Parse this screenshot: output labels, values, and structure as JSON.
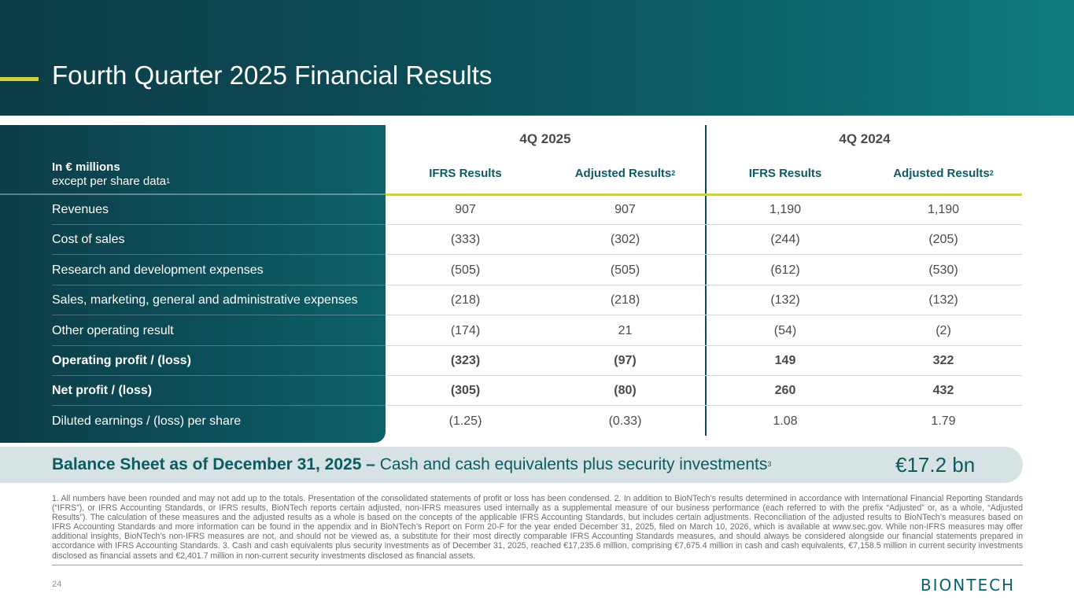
{
  "header": {
    "title": "Fourth Quarter 2025 Financial Results"
  },
  "table": {
    "units_line1": "In € millions",
    "units_line2": "except per share data",
    "units_sup": "1",
    "groups": [
      "4Q 2025",
      "4Q 2024"
    ],
    "columns": [
      {
        "label": "IFRS Results",
        "sup": ""
      },
      {
        "label": "Adjusted Results",
        "sup": "2"
      },
      {
        "label": "IFRS Results",
        "sup": ""
      },
      {
        "label": "Adjusted Results",
        "sup": "2"
      }
    ],
    "rows": [
      {
        "label": "Revenues",
        "values": [
          "907",
          "907",
          "1,190",
          "1,190"
        ],
        "bold": false
      },
      {
        "label": "Cost of sales",
        "values": [
          "(333)",
          "(302)",
          "(244)",
          "(205)"
        ],
        "bold": false
      },
      {
        "label": "Research and development expenses",
        "values": [
          "(505)",
          "(505)",
          "(612)",
          "(530)"
        ],
        "bold": false
      },
      {
        "label": "Sales, marketing, general and administrative expenses",
        "values": [
          "(218)",
          "(218)",
          "(132)",
          "(132)"
        ],
        "bold": false
      },
      {
        "label": "Other operating result",
        "values": [
          "(174)",
          "21",
          "(54)",
          "(2)"
        ],
        "bold": false
      },
      {
        "label": "Operating profit / (loss)",
        "values": [
          "(323)",
          "(97)",
          "149",
          "322"
        ],
        "bold": true
      },
      {
        "label": "Net profit / (loss)",
        "values": [
          "(305)",
          "(80)",
          "260",
          "432"
        ],
        "bold": true
      },
      {
        "label": "Diluted earnings / (loss) per share",
        "values": [
          "(1.25)",
          "(0.33)",
          "1.08",
          "1.79"
        ],
        "bold": false
      }
    ]
  },
  "balance": {
    "bold_text": "Balance Sheet as of December 31, 2025 –",
    "text": " Cash and cash equivalents plus security investments",
    "sup": "3",
    "value": "€17.2 bn"
  },
  "footnote": "1. All numbers have been rounded and may not add up to the totals. Presentation of the consolidated statements of profit or loss has been condensed. 2. In addition to BioNTech’s results determined in accordance with International Financial Reporting Standards (“IFRS”), or IFRS Accounting Standards, or IFRS results, BioNTech reports certain adjusted, non-IFRS measures used internally as a supplemental measure of our business performance (each referred to with the prefix “Adjusted” or, as a whole, “Adjusted Results”). The calculation of these measures and the adjusted results as a whole is based on the concepts of the applicable IFRS Accounting Standards, but includes certain adjustments. Reconciliation of the adjusted results to BioNTech’s measures based on IFRS Accounting Standards and more information can be found in the appendix and in BioNTech’s Report on Form 20-F for the year ended December 31, 2025, filed on March 10, 2026, which is available at www.sec.gov. While non-IFRS measures may offer additional insights, BioNTech’s non-IFRS measures are not, and should not be viewed as, a substitute for their most directly comparable IFRS Accounting Standards measures, and should always be considered alongside our financial statements prepared in accordance with IFRS Accounting Standards. 3. Cash and cash equivalents plus security investments as of December 31, 2025, reached €17,235.6 million, comprising €7,675.4 million in cash and cash equivalents, €7,158.5 million in current security investments disclosed as financial assets and €2,401.7 million in non-current security investments disclosed as financial assets.",
  "page_number": "24",
  "logo": {
    "text": "BIONTECH",
    "color": "#0d6169"
  }
}
